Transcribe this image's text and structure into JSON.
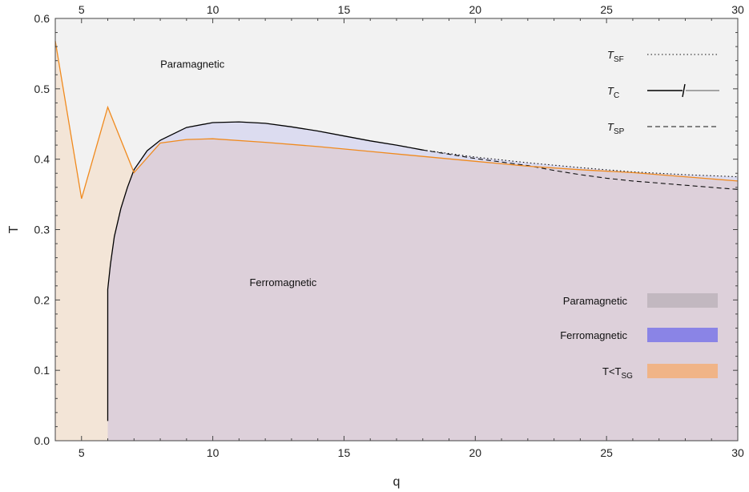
{
  "chart_data": {
    "type": "area",
    "title": "",
    "xlabel": "q",
    "ylabel": "T",
    "xlim": [
      4,
      30
    ],
    "ylim": [
      0,
      0.6
    ],
    "x_ticks": [
      5,
      10,
      15,
      20,
      25,
      30
    ],
    "y_ticks": [
      0.0,
      0.1,
      0.2,
      0.3,
      0.4,
      0.5,
      0.6
    ],
    "x_tick_labels": [
      "5",
      "10",
      "15",
      "20",
      "25",
      "30"
    ],
    "y_tick_labels": [
      "0.0",
      "0.1",
      "0.2",
      "0.3",
      "0.4",
      "0.5",
      "0.6"
    ],
    "grid": false,
    "colors": {
      "paramagnetic_region": "#f2f2f2",
      "ferromagnetic_region": "#dcdcf0",
      "spin_glass_region": "#f3e5d7",
      "overlap_region": "#ddd0da",
      "sg_line": "#f08a1e",
      "tc_line": "#000000",
      "legend_paramagnetic": "#c2b8c0",
      "legend_ferromagnetic": "#8a84e6",
      "legend_spin_glass": "#f0b487"
    },
    "annotations": [
      {
        "text": "Paramagnetic",
        "x": 8.0,
        "y": 0.53
      },
      {
        "text": "Ferromagnetic",
        "x": 11.4,
        "y": 0.22
      }
    ],
    "series": [
      {
        "name": "T_C",
        "style": "solid",
        "x": [
          6.0,
          6.0,
          6.1,
          6.25,
          6.5,
          6.75,
          7.0,
          7.5,
          8.0,
          9.0,
          10.0,
          11.0,
          12.0,
          13.0,
          14.0,
          15.0,
          16.0,
          17.0,
          18.0
        ],
        "y": [
          0.028,
          0.215,
          0.25,
          0.29,
          0.33,
          0.36,
          0.385,
          0.412,
          0.427,
          0.445,
          0.452,
          0.453,
          0.451,
          0.446,
          0.44,
          0.433,
          0.426,
          0.42,
          0.413
        ]
      },
      {
        "name": "T_SF",
        "style": "dotted",
        "x": [
          18.0,
          20.0,
          22.0,
          24.0,
          26.0,
          28.0,
          30.0
        ],
        "y": [
          0.413,
          0.403,
          0.395,
          0.388,
          0.382,
          0.378,
          0.375
        ]
      },
      {
        "name": "T_SP",
        "style": "dashed",
        "x": [
          18.0,
          20.0,
          22.0,
          23.0,
          24.0,
          25.0,
          26.0,
          27.0,
          28.0,
          29.0,
          30.0
        ],
        "y": [
          0.413,
          0.401,
          0.391,
          0.384,
          0.378,
          0.373,
          0.369,
          0.366,
          0.363,
          0.36,
          0.357
        ]
      },
      {
        "name": "T_SG",
        "style": "solid",
        "x": [
          4.0,
          5.0,
          6.0,
          7.0,
          8.0,
          9.0,
          10.0,
          12.0,
          14.0,
          16.0,
          18.0,
          20.0,
          22.0,
          24.0,
          26.0,
          28.0,
          30.0
        ],
        "y": [
          0.568,
          0.344,
          0.474,
          0.381,
          0.423,
          0.428,
          0.429,
          0.424,
          0.418,
          0.411,
          0.404,
          0.397,
          0.39,
          0.385,
          0.381,
          0.375,
          0.369
        ]
      }
    ],
    "legend_lines": [
      {
        "label": "T",
        "sub": "SF",
        "style": "dotted"
      },
      {
        "label": "T",
        "sub": "C",
        "style": "solid-marker"
      },
      {
        "label": "T",
        "sub": "SP",
        "style": "dashed"
      }
    ],
    "legend_regions": [
      {
        "label": "Paramagnetic",
        "sub": "",
        "color": "#c2b8c0"
      },
      {
        "label": "Ferromagnetic",
        "sub": "",
        "color": "#8a84e6"
      },
      {
        "label": "T<T",
        "sub": "SG",
        "color": "#f0b487"
      }
    ]
  }
}
